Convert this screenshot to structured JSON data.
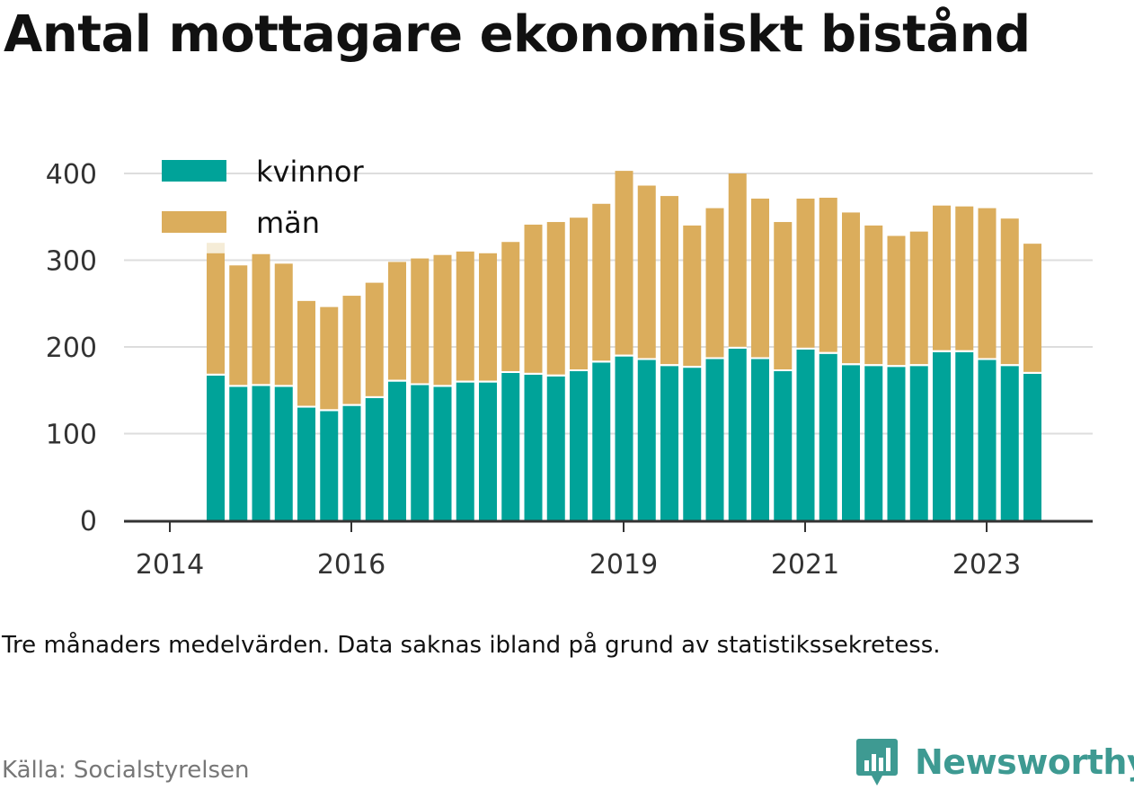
{
  "header": {
    "title": "Antal mottagare ekonomiskt bistånd"
  },
  "footer": {
    "note": "Tre månaders medelvärden. Data saknas ibland på grund av statistikssekretess.",
    "source": "Källa: Socialstyrelsen"
  },
  "brand": {
    "name": "Newsworthy",
    "icon": "newsworthy-logo-icon",
    "color": "#3e9a92"
  },
  "chart_data": {
    "type": "bar",
    "stacked": true,
    "title": "Antal mottagare ekonomiskt bistånd",
    "xlabel": "",
    "ylabel": "",
    "ylim": [
      0,
      420
    ],
    "yticks": [
      0,
      100,
      200,
      300,
      400
    ],
    "xticks": [
      "2014",
      "2016",
      "2019",
      "2021",
      "2023"
    ],
    "grid": true,
    "legend_position": "top-left",
    "categories": [
      "2014-07",
      "2014-10",
      "2015-01",
      "2015-04",
      "2015-07",
      "2015-10",
      "2016-01",
      "2016-04",
      "2016-07",
      "2016-10",
      "2017-01",
      "2017-04",
      "2017-07",
      "2017-10",
      "2018-01",
      "2018-04",
      "2018-07",
      "2018-10",
      "2019-01",
      "2019-04",
      "2019-07",
      "2019-10",
      "2020-01",
      "2020-04",
      "2020-07",
      "2020-10",
      "2021-01",
      "2021-04",
      "2021-07",
      "2021-10",
      "2022-01",
      "2022-04",
      "2022-07",
      "2022-10",
      "2023-01",
      "2023-04",
      "2023-07",
      "2023-10"
    ],
    "series": [
      {
        "name": "kvinnor",
        "color": "#00a399",
        "values": [
          167,
          154,
          155,
          154,
          130,
          126,
          132,
          141,
          160,
          156,
          154,
          159,
          159,
          170,
          168,
          166,
          172,
          182,
          189,
          185,
          178,
          176,
          186,
          198,
          186,
          172,
          197,
          192,
          179,
          178,
          177,
          178,
          194,
          194,
          185,
          178,
          169,
          null
        ]
      },
      {
        "name": "män",
        "color": "#dbad5c",
        "values": [
          141,
          140,
          152,
          142,
          123,
          120,
          127,
          133,
          138,
          146,
          152,
          151,
          149,
          151,
          173,
          178,
          177,
          183,
          214,
          201,
          196,
          164,
          174,
          202,
          185,
          172,
          174,
          180,
          176,
          162,
          151,
          155,
          169,
          168,
          175,
          170,
          150,
          null
        ]
      }
    ],
    "suppressed_total_color": "#f5ecd7",
    "suppressed_totals": [
      320,
      null,
      null,
      null,
      null,
      null,
      null,
      null,
      null,
      null,
      null,
      null,
      null,
      null,
      null,
      null,
      null,
      null,
      null,
      null,
      null,
      null,
      null,
      null,
      null,
      null,
      null,
      null,
      null,
      null,
      null,
      null,
      null,
      null,
      null,
      null,
      null,
      null
    ]
  }
}
